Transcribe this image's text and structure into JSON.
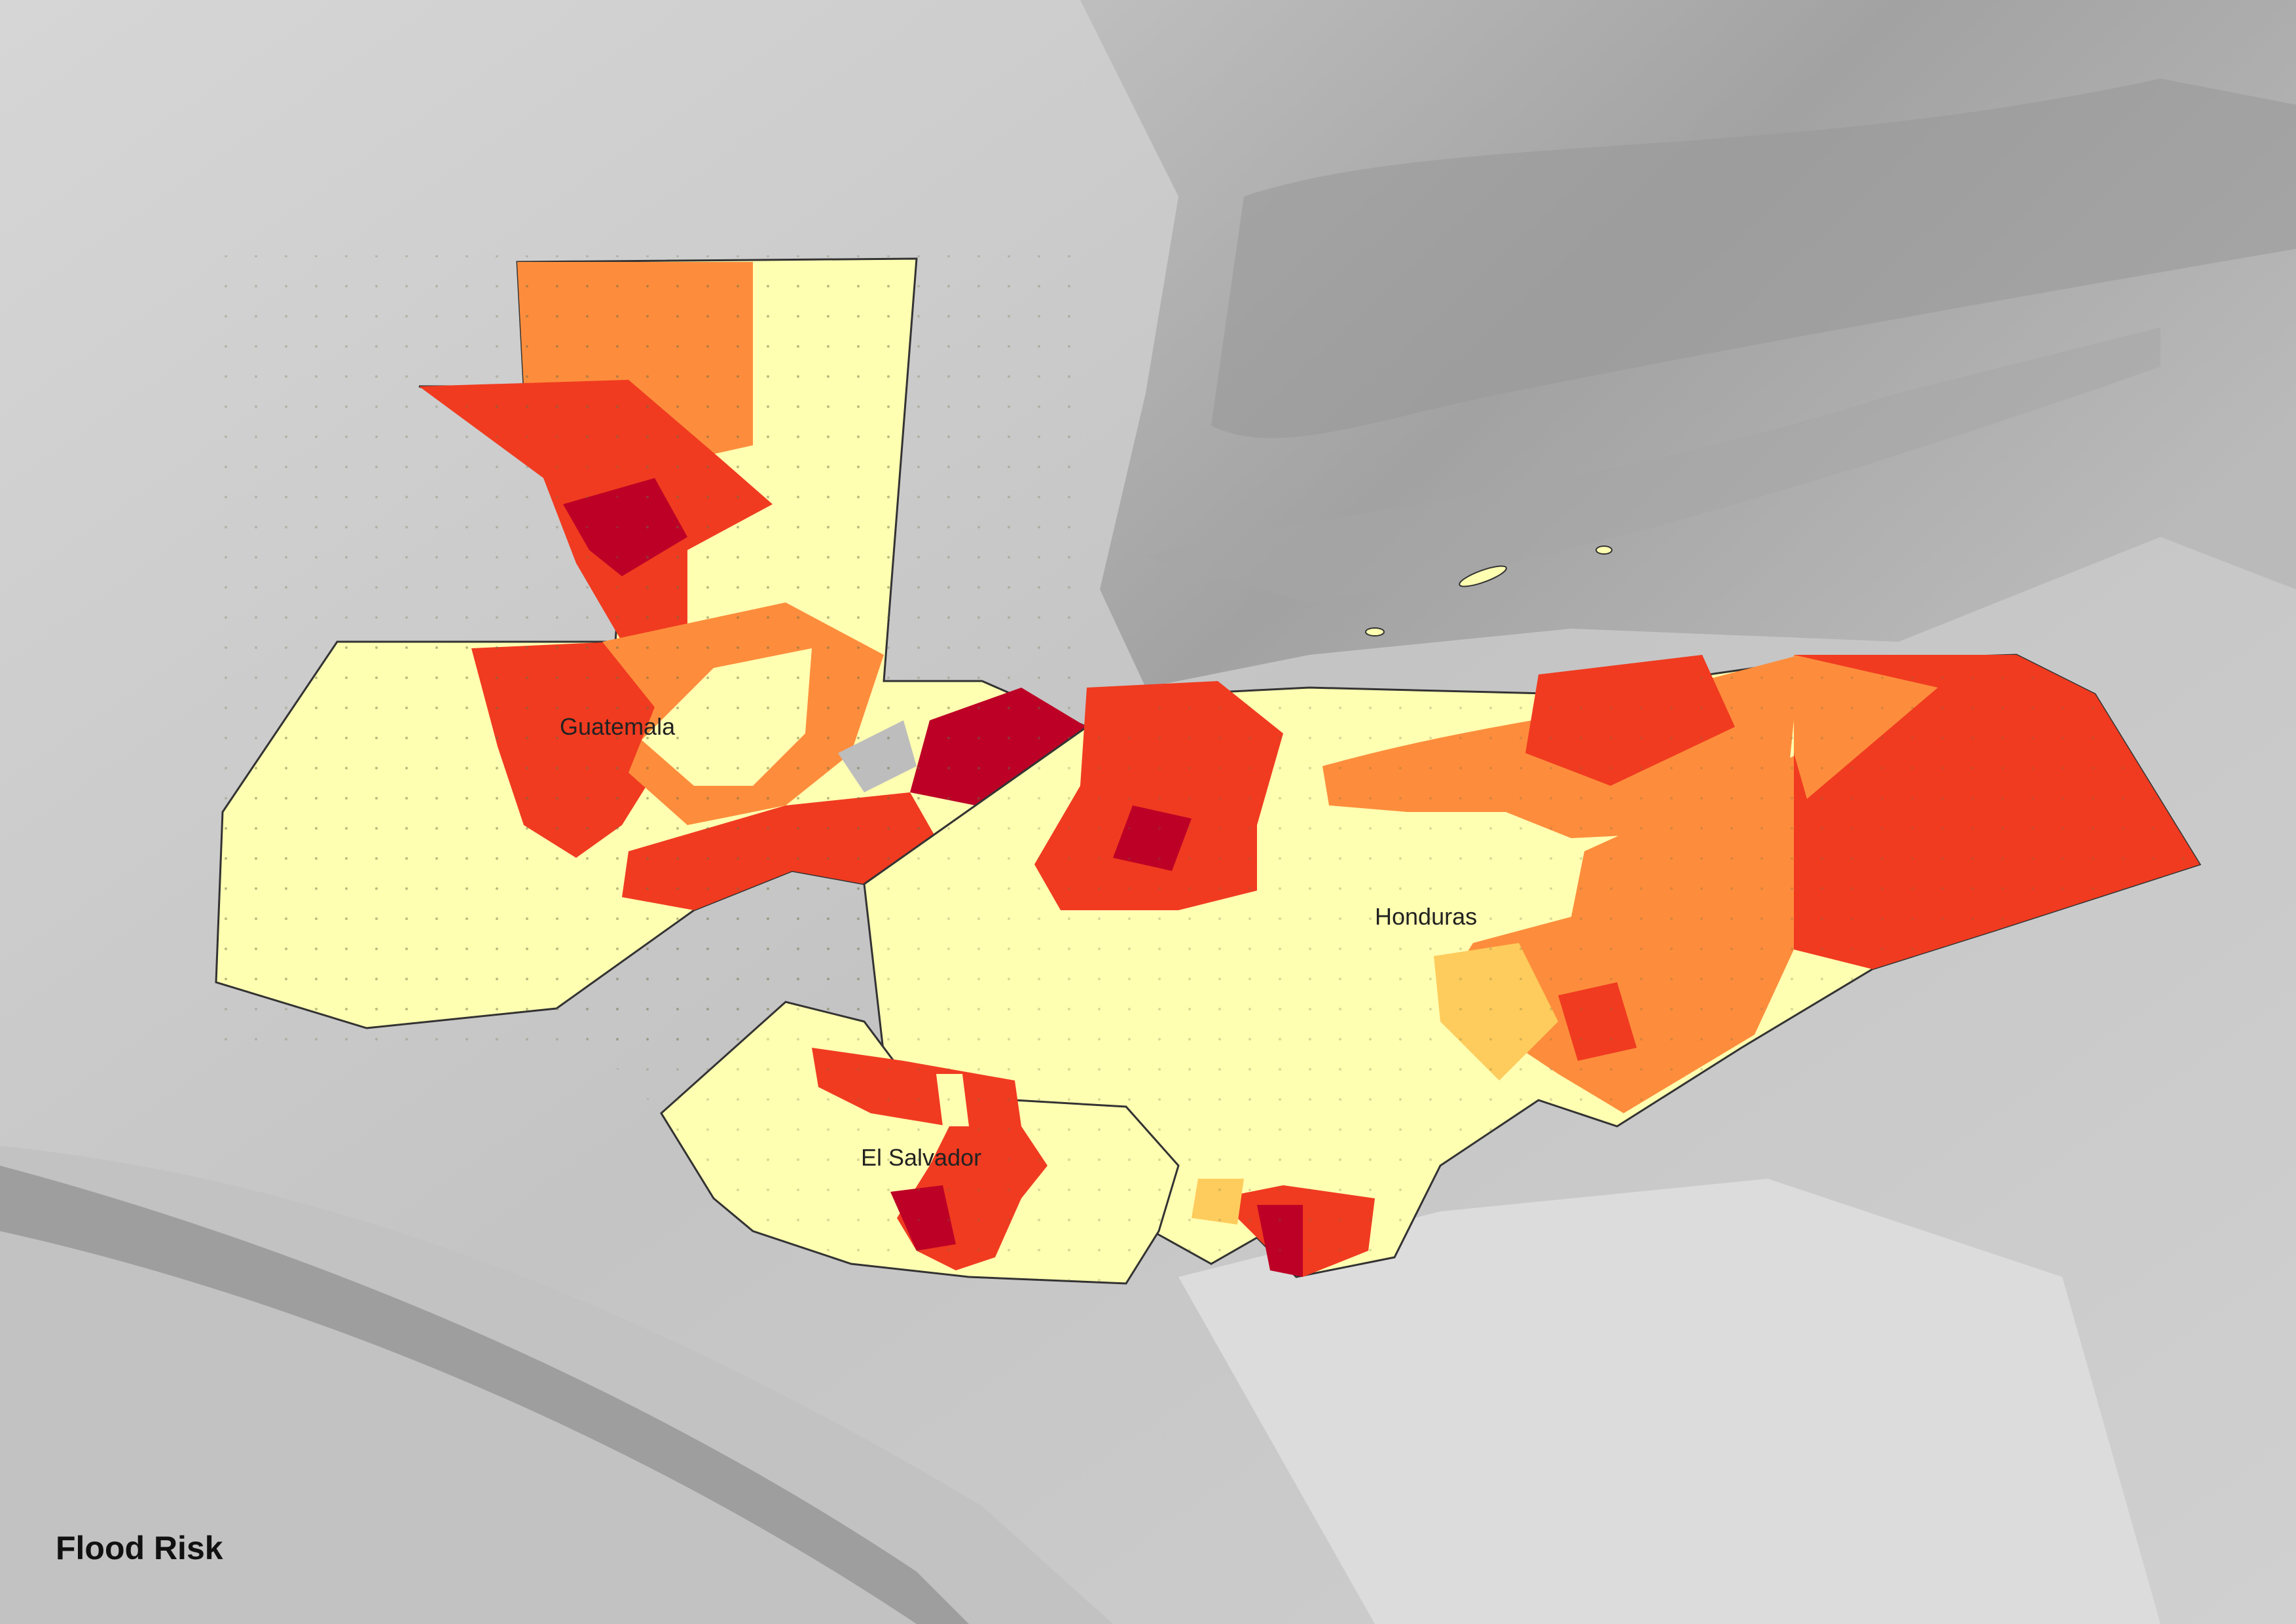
{
  "title": "Flood Risk",
  "country_labels": {
    "guatemala": "Guatemala",
    "honduras": "Honduras",
    "el_salvador": "El Salvador"
  },
  "colors": {
    "very_low": "#ffffb2",
    "low": "#fecc5c",
    "moderate": "#fd8d3c",
    "high": "#f03b20",
    "very_high": "#bd0026",
    "ocean": "#bdbdbd",
    "land_background": "#d9d9d9",
    "border": "#333333"
  },
  "legend_classes": [
    "very_low",
    "low",
    "moderate",
    "high",
    "very_high"
  ]
}
